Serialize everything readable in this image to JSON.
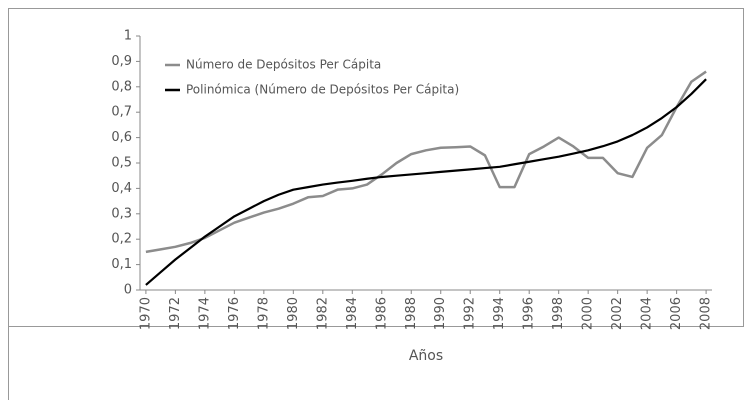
{
  "chart_data": {
    "type": "line",
    "x": [
      1970,
      1971,
      1972,
      1973,
      1974,
      1975,
      1976,
      1977,
      1978,
      1979,
      1980,
      1981,
      1982,
      1983,
      1984,
      1985,
      1986,
      1987,
      1988,
      1989,
      1990,
      1991,
      1992,
      1993,
      1994,
      1995,
      1996,
      1997,
      1998,
      1999,
      2000,
      2001,
      2002,
      2003,
      2004,
      2005,
      2006,
      2007,
      2008
    ],
    "series": [
      {
        "name": "Número de Depósitos Per Cápita",
        "color": "#8c8c8c",
        "values": [
          0.15,
          0.16,
          0.17,
          0.185,
          0.205,
          0.235,
          0.265,
          0.285,
          0.305,
          0.32,
          0.34,
          0.365,
          0.37,
          0.395,
          0.4,
          0.415,
          0.455,
          0.5,
          0.535,
          0.55,
          0.56,
          0.562,
          0.565,
          0.53,
          0.405,
          0.405,
          0.535,
          0.565,
          0.6,
          0.565,
          0.52,
          0.52,
          0.46,
          0.445,
          0.56,
          0.61,
          0.72,
          0.82,
          0.86
        ]
      },
      {
        "name": "Polinómica (Número de Depósitos Per Cápita)",
        "color": "#000000",
        "values": [
          0.02,
          0.07,
          0.12,
          0.165,
          0.21,
          0.25,
          0.29,
          0.32,
          0.35,
          0.375,
          0.395,
          0.405,
          0.415,
          0.423,
          0.43,
          0.438,
          0.445,
          0.45,
          0.455,
          0.46,
          0.465,
          0.47,
          0.475,
          0.48,
          0.485,
          0.495,
          0.505,
          0.515,
          0.525,
          0.537,
          0.55,
          0.566,
          0.585,
          0.61,
          0.64,
          0.677,
          0.72,
          0.772,
          0.83
        ]
      }
    ],
    "xlabel": "Años",
    "xlim": [
      1969.6,
      2008.4
    ],
    "xticks": [
      1970,
      1972,
      1974,
      1976,
      1978,
      1980,
      1982,
      1984,
      1986,
      1988,
      1990,
      1992,
      1994,
      1996,
      1998,
      2000,
      2002,
      2004,
      2006,
      2008
    ],
    "ylim": [
      0,
      1
    ],
    "yticks": [
      0,
      {
        "value": 0.1,
        "label": "0,1"
      },
      {
        "value": 0.2,
        "label": "0,2"
      },
      {
        "value": 0.3,
        "label": "0,3"
      },
      {
        "value": 0.4,
        "label": "0,4"
      },
      {
        "value": 0.5,
        "label": "0,5"
      },
      {
        "value": 0.6,
        "label": "0,6"
      },
      {
        "value": 0.7,
        "label": "0,7"
      },
      {
        "value": 0.8,
        "label": "0,8"
      },
      {
        "value": 0.9,
        "label": "0,9"
      },
      1
    ],
    "legend": "upper left"
  }
}
